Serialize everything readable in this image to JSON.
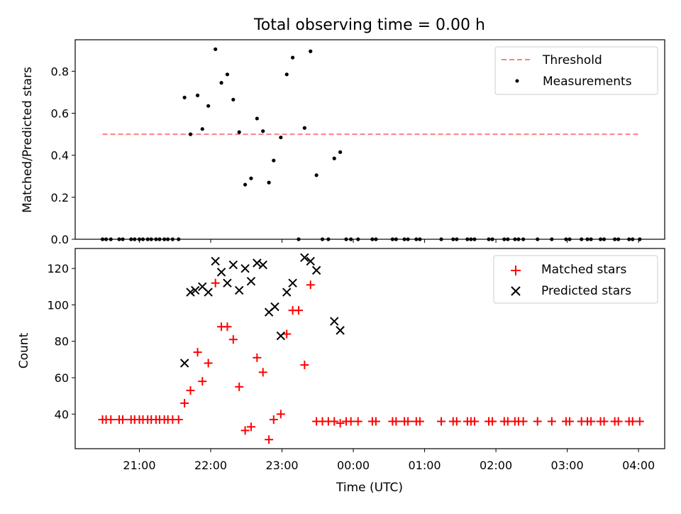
{
  "figure": {
    "title": "Total observing time = 0.00 h",
    "xlabel": "Time (UTC)",
    "xticks": [
      "21:00",
      "22:00",
      "23:00",
      "00:00",
      "01:00",
      "02:00",
      "03:00",
      "04:00"
    ]
  },
  "chart_data": [
    {
      "type": "scatter",
      "ylabel": "Matched/Predicted stars",
      "ylim": [
        0,
        0.95
      ],
      "xlim": [
        "20:06",
        "04:22"
      ],
      "yticks": [
        "0.0",
        "0.2",
        "0.4",
        "0.6",
        "0.8"
      ],
      "legend": {
        "placement": "top-right",
        "entries": [
          {
            "label": "Threshold",
            "style": "dashed-line",
            "color": "#ff7f7f"
          },
          {
            "label": "Measurements",
            "style": "dot",
            "color": "#000000"
          }
        ]
      },
      "threshold": {
        "name": "Threshold",
        "y": 0.5,
        "x_start": "20:29",
        "x_end": "04:01",
        "color": "#ff7f7f"
      },
      "series": [
        {
          "name": "Measurements",
          "color": "#000000",
          "points": [
            [
              "20:29",
              0.0
            ],
            [
              "20:32",
              0.0
            ],
            [
              "20:36",
              0.0
            ],
            [
              "20:43",
              0.0
            ],
            [
              "20:46",
              0.0
            ],
            [
              "20:53",
              0.0
            ],
            [
              "20:56",
              0.0
            ],
            [
              "21:00",
              0.0
            ],
            [
              "21:03",
              0.0
            ],
            [
              "21:07",
              0.0
            ],
            [
              "21:10",
              0.0
            ],
            [
              "21:14",
              0.0
            ],
            [
              "21:17",
              0.0
            ],
            [
              "21:21",
              0.0
            ],
            [
              "21:24",
              0.0
            ],
            [
              "21:28",
              0.0
            ],
            [
              "21:33",
              0.0
            ],
            [
              "21:38",
              0.675
            ],
            [
              "21:43",
              0.5
            ],
            [
              "21:49",
              0.685
            ],
            [
              "21:53",
              0.525
            ],
            [
              "21:58",
              0.635
            ],
            [
              "22:04",
              0.905
            ],
            [
              "22:09",
              0.745
            ],
            [
              "22:14",
              0.785
            ],
            [
              "22:19",
              0.665
            ],
            [
              "22:24",
              0.51
            ],
            [
              "22:29",
              0.26
            ],
            [
              "22:34",
              0.29
            ],
            [
              "22:39",
              0.575
            ],
            [
              "22:44",
              0.515
            ],
            [
              "22:49",
              0.27
            ],
            [
              "22:53",
              0.375
            ],
            [
              "22:59",
              0.485
            ],
            [
              "23:04",
              0.785
            ],
            [
              "23:09",
              0.865
            ],
            [
              "23:14",
              0.0
            ],
            [
              "23:19",
              0.53
            ],
            [
              "23:24",
              0.895
            ],
            [
              "23:29",
              0.305
            ],
            [
              "23:34",
              0.0
            ],
            [
              "23:39",
              0.0
            ],
            [
              "23:44",
              0.385
            ],
            [
              "23:49",
              0.415
            ],
            [
              "23:54",
              0.0
            ],
            [
              "23:58",
              0.0
            ],
            [
              "00:04",
              0.0
            ],
            [
              "00:16",
              0.0
            ],
            [
              "00:19",
              0.0
            ],
            [
              "00:33",
              0.0
            ],
            [
              "00:36",
              0.0
            ],
            [
              "00:43",
              0.0
            ],
            [
              "00:46",
              0.0
            ],
            [
              "00:53",
              0.0
            ],
            [
              "00:56",
              0.0
            ],
            [
              "01:14",
              0.0
            ],
            [
              "01:24",
              0.0
            ],
            [
              "01:27",
              0.0
            ],
            [
              "01:36",
              0.0
            ],
            [
              "01:39",
              0.0
            ],
            [
              "01:42",
              0.0
            ],
            [
              "01:54",
              0.0
            ],
            [
              "01:57",
              0.0
            ],
            [
              "02:07",
              0.0
            ],
            [
              "02:10",
              0.0
            ],
            [
              "02:16",
              0.0
            ],
            [
              "02:19",
              0.0
            ],
            [
              "02:23",
              0.0
            ],
            [
              "02:35",
              0.0
            ],
            [
              "02:47",
              0.0
            ],
            [
              "02:59",
              0.0
            ],
            [
              "03:02",
              0.0
            ],
            [
              "03:12",
              0.0
            ],
            [
              "03:17",
              0.0
            ],
            [
              "03:20",
              0.0
            ],
            [
              "03:28",
              0.0
            ],
            [
              "03:31",
              0.0
            ],
            [
              "03:40",
              0.0
            ],
            [
              "03:43",
              0.0
            ],
            [
              "03:52",
              0.0
            ],
            [
              "03:55",
              0.0
            ],
            [
              "04:01",
              0.0
            ]
          ]
        }
      ]
    },
    {
      "type": "scatter",
      "ylabel": "Count",
      "ylim": [
        21,
        131
      ],
      "xlim": [
        "20:06",
        "04:22"
      ],
      "yticks": [
        "40",
        "60",
        "80",
        "100",
        "120"
      ],
      "legend": {
        "placement": "top-right",
        "entries": [
          {
            "label": "Matched stars",
            "style": "plus",
            "color": "#ff0000"
          },
          {
            "label": "Predicted stars",
            "style": "x",
            "color": "#000000"
          }
        ]
      },
      "series": [
        {
          "name": "Matched stars",
          "marker": "plus",
          "color": "#ff0000",
          "points": [
            [
              "20:29",
              37
            ],
            [
              "20:32",
              37
            ],
            [
              "20:36",
              37
            ],
            [
              "20:43",
              37
            ],
            [
              "20:46",
              37
            ],
            [
              "20:53",
              37
            ],
            [
              "20:56",
              37
            ],
            [
              "21:00",
              37
            ],
            [
              "21:03",
              37
            ],
            [
              "21:07",
              37
            ],
            [
              "21:10",
              37
            ],
            [
              "21:14",
              37
            ],
            [
              "21:17",
              37
            ],
            [
              "21:21",
              37
            ],
            [
              "21:24",
              37
            ],
            [
              "21:28",
              37
            ],
            [
              "21:33",
              37
            ],
            [
              "21:38",
              46
            ],
            [
              "21:43",
              53
            ],
            [
              "21:49",
              74
            ],
            [
              "21:53",
              58
            ],
            [
              "21:58",
              68
            ],
            [
              "22:04",
              112
            ],
            [
              "22:09",
              88
            ],
            [
              "22:14",
              88
            ],
            [
              "22:19",
              81
            ],
            [
              "22:24",
              55
            ],
            [
              "22:29",
              31
            ],
            [
              "22:34",
              33
            ],
            [
              "22:39",
              71
            ],
            [
              "22:44",
              63
            ],
            [
              "22:49",
              26
            ],
            [
              "22:53",
              37
            ],
            [
              "22:59",
              40
            ],
            [
              "23:04",
              84
            ],
            [
              "23:09",
              97
            ],
            [
              "23:14",
              97
            ],
            [
              "23:19",
              67
            ],
            [
              "23:24",
              111
            ],
            [
              "23:29",
              36
            ],
            [
              "23:34",
              36
            ],
            [
              "23:39",
              36
            ],
            [
              "23:44",
              36
            ],
            [
              "23:49",
              35
            ],
            [
              "23:54",
              36
            ],
            [
              "23:58",
              36
            ],
            [
              "00:04",
              36
            ],
            [
              "00:16",
              36
            ],
            [
              "00:19",
              36
            ],
            [
              "00:33",
              36
            ],
            [
              "00:36",
              36
            ],
            [
              "00:43",
              36
            ],
            [
              "00:46",
              36
            ],
            [
              "00:53",
              36
            ],
            [
              "00:56",
              36
            ],
            [
              "01:14",
              36
            ],
            [
              "01:24",
              36
            ],
            [
              "01:27",
              36
            ],
            [
              "01:36",
              36
            ],
            [
              "01:39",
              36
            ],
            [
              "01:42",
              36
            ],
            [
              "01:54",
              36
            ],
            [
              "01:57",
              36
            ],
            [
              "02:07",
              36
            ],
            [
              "02:10",
              36
            ],
            [
              "02:16",
              36
            ],
            [
              "02:19",
              36
            ],
            [
              "02:23",
              36
            ],
            [
              "02:35",
              36
            ],
            [
              "02:47",
              36
            ],
            [
              "02:59",
              36
            ],
            [
              "03:02",
              36
            ],
            [
              "03:12",
              36
            ],
            [
              "03:17",
              36
            ],
            [
              "03:20",
              36
            ],
            [
              "03:28",
              36
            ],
            [
              "03:31",
              36
            ],
            [
              "03:40",
              36
            ],
            [
              "03:43",
              36
            ],
            [
              "03:52",
              36
            ],
            [
              "03:55",
              36
            ],
            [
              "04:01",
              36
            ]
          ]
        },
        {
          "name": "Predicted stars",
          "marker": "x",
          "color": "#000000",
          "points": [
            [
              "21:38",
              68
            ],
            [
              "21:43",
              107
            ],
            [
              "21:47",
              108
            ],
            [
              "21:53",
              110
            ],
            [
              "21:58",
              107
            ],
            [
              "22:04",
              124
            ],
            [
              "22:09",
              118
            ],
            [
              "22:14",
              112
            ],
            [
              "22:19",
              122
            ],
            [
              "22:24",
              108
            ],
            [
              "22:29",
              120
            ],
            [
              "22:34",
              113
            ],
            [
              "22:39",
              123
            ],
            [
              "22:44",
              122
            ],
            [
              "22:49",
              96
            ],
            [
              "22:54",
              99
            ],
            [
              "22:59",
              83
            ],
            [
              "23:04",
              107
            ],
            [
              "23:09",
              112
            ],
            [
              "23:19",
              126
            ],
            [
              "23:24",
              124
            ],
            [
              "23:29",
              119
            ],
            [
              "23:44",
              91
            ],
            [
              "23:49",
              86
            ]
          ]
        }
      ]
    }
  ]
}
